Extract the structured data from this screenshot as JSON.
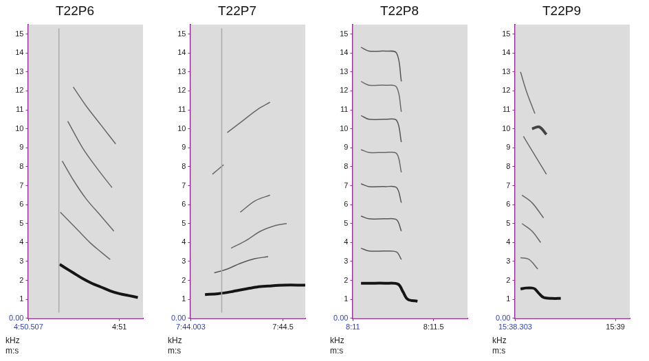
{
  "chart_data": [
    {
      "type": "line",
      "title": "T22P6",
      "x_label": "m:s",
      "y_label": "kHz",
      "grid": false,
      "xlim": [
        290.507,
        291.128
      ],
      "xticks": [
        {
          "value": 290.507,
          "label": "4:50.507"
        },
        {
          "value": 291,
          "label": "4:51"
        }
      ],
      "ylim": [
        0,
        15.5
      ],
      "yticks": [
        {
          "value": 0,
          "label": "0.00"
        },
        1,
        2,
        3,
        4,
        5,
        6,
        7,
        8,
        9,
        10,
        11,
        12,
        13,
        14,
        15
      ],
      "series": [
        {
          "x": [
            290.672,
            290.672
          ],
          "values": [
            0.3,
            15.3
          ],
          "color": "#aaaaaa",
          "line_style": "solid"
        },
        {
          "x": [
            290.676,
            290.7,
            290.75,
            290.8,
            290.85,
            290.9,
            290.95,
            291.0,
            291.05,
            291.1
          ],
          "values": [
            2.85,
            2.7,
            2.4,
            2.1,
            1.85,
            1.65,
            1.45,
            1.3,
            1.2,
            1.1
          ],
          "color": "#151515",
          "line_style": "thick"
        },
        {
          "x": [
            290.68,
            290.72,
            290.78,
            290.84,
            290.9,
            290.95
          ],
          "values": [
            5.6,
            5.2,
            4.6,
            4.0,
            3.5,
            3.1
          ],
          "color": "#666666",
          "line_style": "solid"
        },
        {
          "x": [
            290.69,
            290.75,
            290.82,
            290.9,
            290.97
          ],
          "values": [
            8.3,
            7.3,
            6.3,
            5.4,
            4.6
          ],
          "color": "#666666",
          "line_style": "solid"
        },
        {
          "x": [
            290.72,
            290.8,
            290.88,
            290.96
          ],
          "values": [
            10.4,
            9.0,
            7.9,
            6.9
          ],
          "color": "#666666",
          "line_style": "solid"
        },
        {
          "x": [
            290.75,
            290.82,
            290.9,
            290.98
          ],
          "values": [
            12.2,
            11.2,
            10.2,
            9.2
          ],
          "color": "#666666",
          "line_style": "solid"
        }
      ]
    },
    {
      "type": "line",
      "title": "T22P7",
      "x_label": "m:s",
      "y_label": "kHz",
      "grid": false,
      "xlim": [
        464.003,
        464.62
      ],
      "xticks": [
        {
          "value": 464.003,
          "label": "7:44.003"
        },
        {
          "value": 464.5,
          "label": "7:44.5"
        }
      ],
      "ylim": [
        0,
        15.5
      ],
      "yticks": [
        {
          "value": 0,
          "label": "0.00"
        },
        1,
        2,
        3,
        4,
        5,
        6,
        7,
        8,
        9,
        10,
        11,
        12,
        13,
        14,
        15
      ],
      "series": [
        {
          "x": [
            464.17,
            464.17
          ],
          "values": [
            0.3,
            15.3
          ],
          "color": "#aaaaaa",
          "line_style": "solid"
        },
        {
          "x": [
            464.08,
            464.15,
            464.22,
            464.3,
            464.36,
            464.42,
            464.5,
            464.62
          ],
          "values": [
            1.25,
            1.3,
            1.4,
            1.55,
            1.65,
            1.7,
            1.75,
            1.75
          ],
          "color": "#151515",
          "line_style": "thick"
        },
        {
          "x": [
            464.13,
            464.2,
            464.27,
            464.35,
            464.42
          ],
          "values": [
            2.4,
            2.6,
            2.9,
            3.15,
            3.25
          ],
          "color": "#555555",
          "line_style": "solid"
        },
        {
          "x": [
            464.22,
            464.3,
            464.38,
            464.46,
            464.52
          ],
          "values": [
            3.7,
            4.1,
            4.6,
            4.9,
            5.0
          ],
          "color": "#666666",
          "line_style": "solid"
        },
        {
          "x": [
            464.27,
            464.35,
            464.43
          ],
          "values": [
            5.6,
            6.2,
            6.5
          ],
          "color": "#666666",
          "line_style": "solid"
        },
        {
          "x": [
            464.12,
            464.18
          ],
          "values": [
            7.6,
            8.1
          ],
          "color": "#666666",
          "line_style": "solid"
        },
        {
          "x": [
            464.2,
            464.28,
            464.36,
            464.43
          ],
          "values": [
            9.8,
            10.4,
            11.0,
            11.4
          ],
          "color": "#666666",
          "line_style": "solid"
        }
      ]
    },
    {
      "type": "line",
      "title": "T22P8",
      "x_label": "m:s",
      "y_label": "kHz",
      "grid": false,
      "xlim": [
        491,
        491.71
      ],
      "xticks": [
        {
          "value": 491,
          "label": "8:11"
        },
        {
          "value": 491.5,
          "label": "8:11.5"
        }
      ],
      "ylim": [
        0,
        15.5
      ],
      "yticks": [
        {
          "value": 0,
          "label": "0.00"
        },
        1,
        2,
        3,
        4,
        5,
        6,
        7,
        8,
        9,
        10,
        11,
        12,
        13,
        14,
        15
      ],
      "series": [
        {
          "x": [
            491.05,
            491.1,
            491.2,
            491.28,
            491.31,
            491.34,
            491.4
          ],
          "values": [
            1.85,
            1.85,
            1.85,
            1.8,
            1.4,
            1.0,
            0.9
          ],
          "color": "#151515",
          "line_style": "thick"
        },
        {
          "x": [
            491.05,
            491.1,
            491.2,
            491.27,
            491.3
          ],
          "values": [
            3.7,
            3.55,
            3.55,
            3.5,
            3.1
          ],
          "color": "#555555",
          "line_style": "solid"
        },
        {
          "x": [
            491.05,
            491.1,
            491.2,
            491.27,
            491.3
          ],
          "values": [
            5.4,
            5.25,
            5.25,
            5.2,
            4.6
          ],
          "color": "#555555",
          "line_style": "solid"
        },
        {
          "x": [
            491.05,
            491.1,
            491.2,
            491.27,
            491.3
          ],
          "values": [
            7.1,
            6.95,
            6.95,
            6.9,
            6.1
          ],
          "color": "#555555",
          "line_style": "solid"
        },
        {
          "x": [
            491.05,
            491.1,
            491.2,
            491.27,
            491.3
          ],
          "values": [
            8.9,
            8.75,
            8.75,
            8.7,
            7.7
          ],
          "color": "#666666",
          "line_style": "solid"
        },
        {
          "x": [
            491.05,
            491.1,
            491.2,
            491.27,
            491.3
          ],
          "values": [
            10.7,
            10.5,
            10.5,
            10.45,
            9.3
          ],
          "color": "#555555",
          "line_style": "solid"
        },
        {
          "x": [
            491.05,
            491.1,
            491.2,
            491.27,
            491.3
          ],
          "values": [
            12.5,
            12.3,
            12.3,
            12.2,
            10.9
          ],
          "color": "#666666",
          "line_style": "solid"
        },
        {
          "x": [
            491.05,
            491.1,
            491.2,
            491.27,
            491.3
          ],
          "values": [
            14.3,
            14.1,
            14.1,
            14.0,
            12.5
          ],
          "color": "#555555",
          "line_style": "solid"
        }
      ]
    },
    {
      "type": "line",
      "title": "T22P9",
      "x_label": "m:s",
      "y_label": "kHz",
      "grid": false,
      "xlim": [
        938.303,
        939.1
      ],
      "xticks": [
        {
          "value": 938.303,
          "label": "15:38.303"
        },
        {
          "value": 939,
          "label": "15:39"
        }
      ],
      "ylim": [
        0,
        15.5
      ],
      "yticks": [
        {
          "value": 0,
          "label": "0.00"
        },
        1,
        2,
        3,
        4,
        5,
        6,
        7,
        8,
        9,
        10,
        11,
        12,
        13,
        14,
        15
      ],
      "series": [
        {
          "x": [
            938.34,
            938.38,
            938.42,
            938.44,
            938.47,
            938.5,
            938.56,
            938.62
          ],
          "values": [
            1.55,
            1.6,
            1.6,
            1.55,
            1.3,
            1.1,
            1.05,
            1.05
          ],
          "color": "#151515",
          "line_style": "thick"
        },
        {
          "x": [
            938.34,
            938.4,
            938.46
          ],
          "values": [
            3.2,
            3.1,
            2.6
          ],
          "color": "#666666",
          "line_style": "solid"
        },
        {
          "x": [
            938.35,
            938.42,
            938.48
          ],
          "values": [
            5.0,
            4.6,
            4.0
          ],
          "color": "#666666",
          "line_style": "solid"
        },
        {
          "x": [
            938.35,
            938.42,
            938.5
          ],
          "values": [
            6.5,
            6.1,
            5.3
          ],
          "color": "#666666",
          "line_style": "solid"
        },
        {
          "x": [
            938.36,
            938.44,
            938.52
          ],
          "values": [
            9.6,
            8.6,
            7.6
          ],
          "color": "#666666",
          "line_style": "solid"
        },
        {
          "x": [
            938.42,
            938.47,
            938.52
          ],
          "values": [
            10.0,
            10.1,
            9.7
          ],
          "color": "#444444",
          "line_style": "thick"
        },
        {
          "x": [
            938.34,
            938.38,
            938.44
          ],
          "values": [
            13.0,
            12.0,
            10.8
          ],
          "color": "#666666",
          "line_style": "solid"
        }
      ]
    }
  ]
}
